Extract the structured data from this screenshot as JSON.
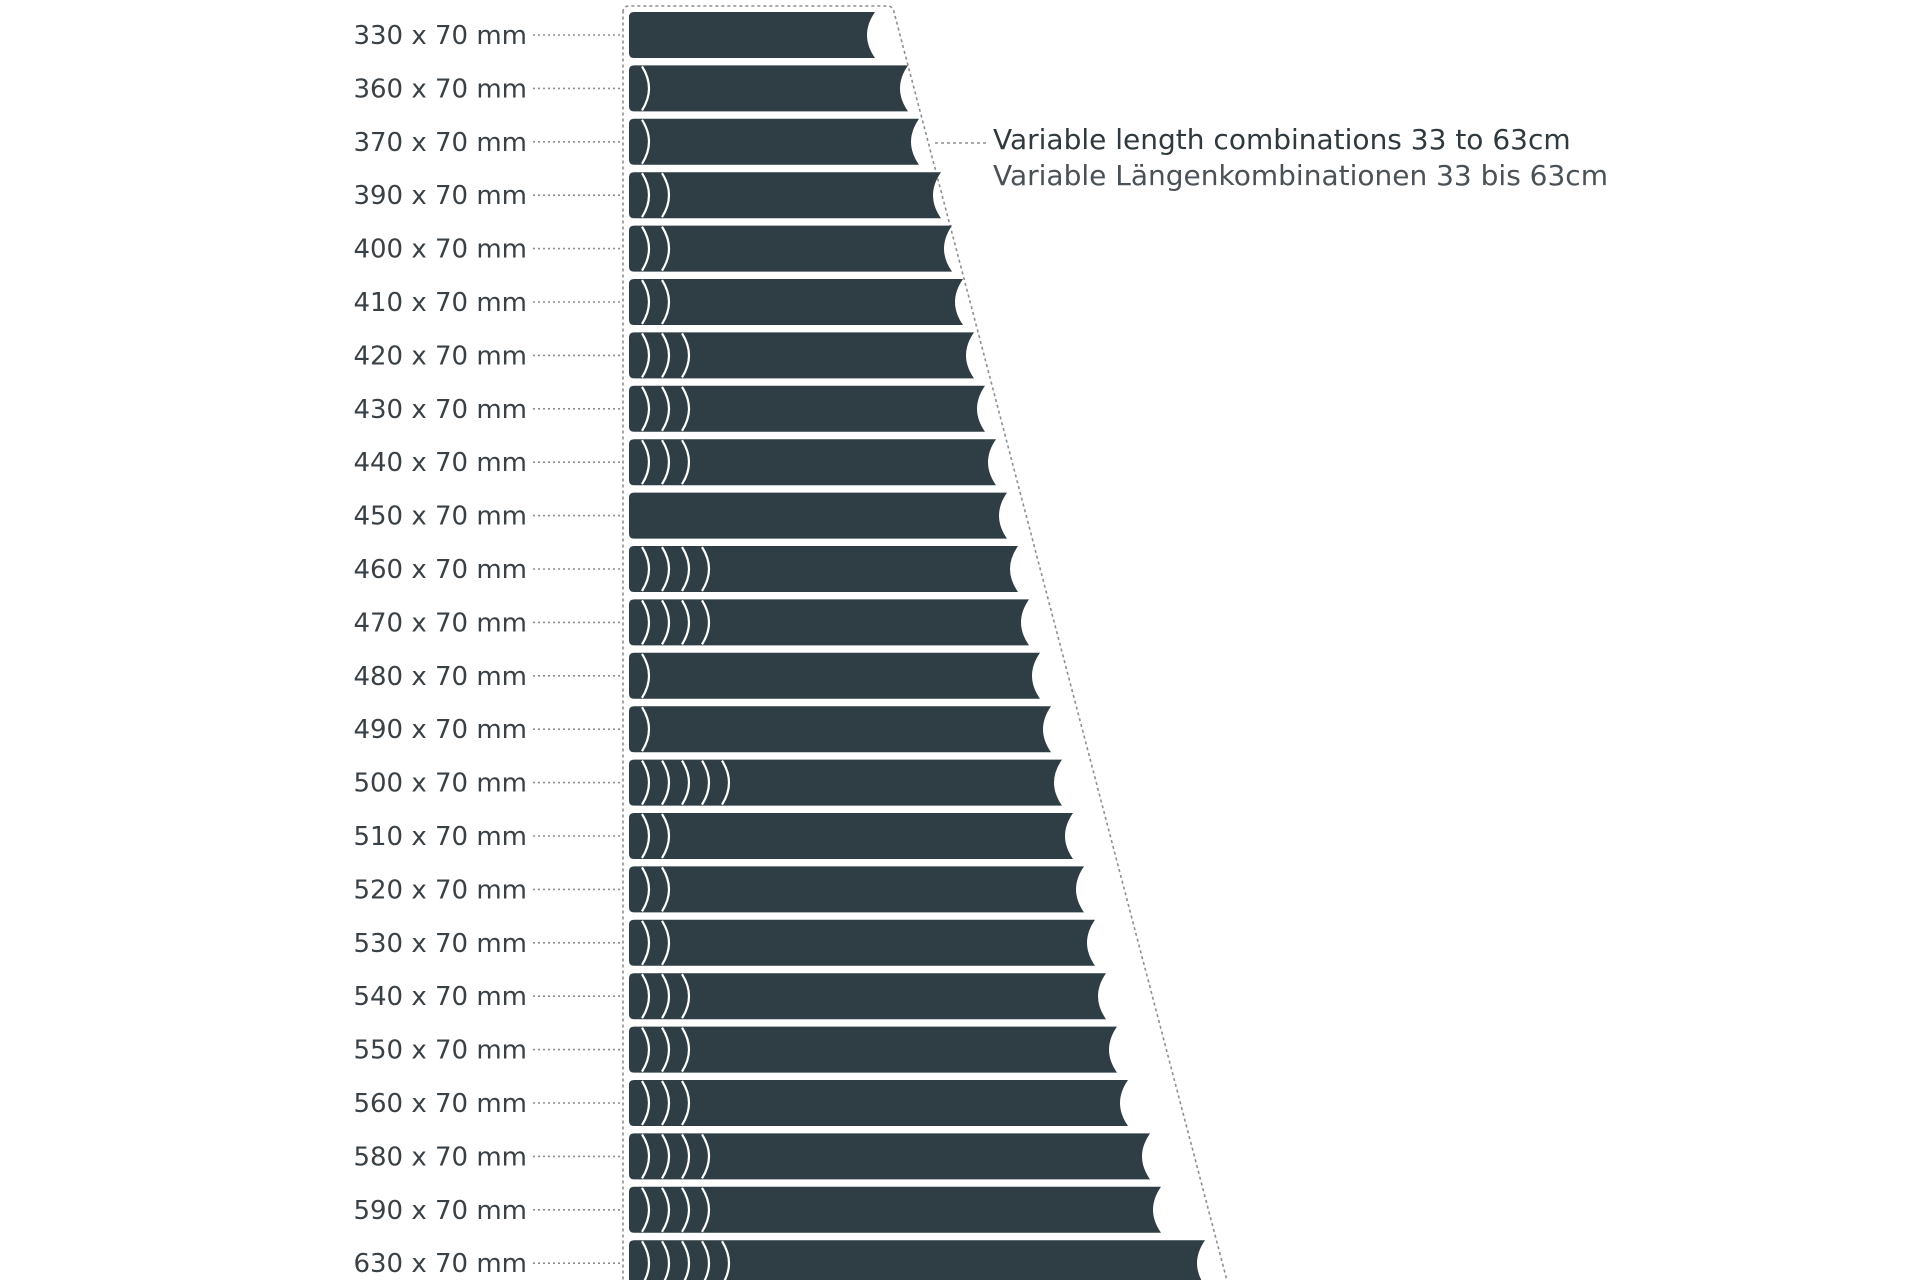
{
  "colors": {
    "segment_fill": "#2f3d44",
    "joint_stroke": "#ffffff",
    "leader_line": "#8a8f93",
    "outline": "#8a8f93",
    "label_text": "#3a4146"
  },
  "caption": {
    "line_en": "Variable length combinations 33 to 63cm",
    "line_de": "Variable Längenkombinationen 33 bis 63cm"
  },
  "rows": [
    {
      "label": "330 x 70 mm",
      "length_mm": 330,
      "joints": 0
    },
    {
      "label": "360 x 70 mm",
      "length_mm": 360,
      "joints": 1
    },
    {
      "label": "370 x 70 mm",
      "length_mm": 370,
      "joints": 1
    },
    {
      "label": "390 x 70 mm",
      "length_mm": 390,
      "joints": 2
    },
    {
      "label": "400 x 70 mm",
      "length_mm": 400,
      "joints": 2
    },
    {
      "label": "410 x 70 mm",
      "length_mm": 410,
      "joints": 2
    },
    {
      "label": "420 x 70 mm",
      "length_mm": 420,
      "joints": 3
    },
    {
      "label": "430 x 70 mm",
      "length_mm": 430,
      "joints": 3
    },
    {
      "label": "440 x 70 mm",
      "length_mm": 440,
      "joints": 3
    },
    {
      "label": "450 x 70 mm",
      "length_mm": 450,
      "joints": 0
    },
    {
      "label": "460 x 70 mm",
      "length_mm": 460,
      "joints": 4
    },
    {
      "label": "470 x 70 mm",
      "length_mm": 470,
      "joints": 4
    },
    {
      "label": "480 x 70 mm",
      "length_mm": 480,
      "joints": 1
    },
    {
      "label": "490 x 70 mm",
      "length_mm": 490,
      "joints": 1
    },
    {
      "label": "500 x 70 mm",
      "length_mm": 500,
      "joints": 5
    },
    {
      "label": "510 x 70 mm",
      "length_mm": 510,
      "joints": 2
    },
    {
      "label": "520 x 70 mm",
      "length_mm": 520,
      "joints": 2
    },
    {
      "label": "530 x 70 mm",
      "length_mm": 530,
      "joints": 2
    },
    {
      "label": "540 x 70 mm",
      "length_mm": 540,
      "joints": 3
    },
    {
      "label": "550 x 70 mm",
      "length_mm": 550,
      "joints": 3
    },
    {
      "label": "560 x 70 mm",
      "length_mm": 560,
      "joints": 3
    },
    {
      "label": "580 x 70 mm",
      "length_mm": 580,
      "joints": 4
    },
    {
      "label": "590 x 70 mm",
      "length_mm": 590,
      "joints": 4
    },
    {
      "label": "630 x 70 mm",
      "length_mm": 630,
      "joints": 5
    }
  ]
}
